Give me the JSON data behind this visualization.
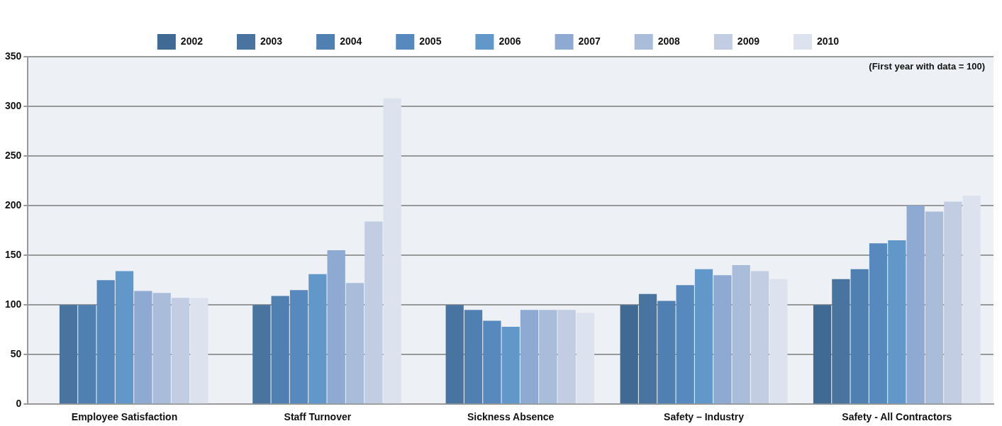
{
  "chart_data": {
    "type": "bar",
    "categories": [
      "Employee Satisfaction",
      "Staff Turnover",
      "Sickness Absence",
      "Safety – Industry",
      "Safety - All Contractors"
    ],
    "series": [
      {
        "name": "2002",
        "color": "#3f6a94",
        "values": [
          null,
          null,
          null,
          100,
          100
        ]
      },
      {
        "name": "2003",
        "color": "#48749f",
        "values": [
          100,
          100,
          100,
          111,
          126
        ]
      },
      {
        "name": "2004",
        "color": "#5080b2",
        "values": [
          100,
          109,
          95,
          104,
          136
        ]
      },
      {
        "name": "2005",
        "color": "#5789bf",
        "values": [
          125,
          115,
          84,
          120,
          162
        ]
      },
      {
        "name": "2006",
        "color": "#6197c9",
        "values": [
          134,
          131,
          78,
          136,
          165
        ]
      },
      {
        "name": "2007",
        "color": "#8eaad3",
        "values": [
          114,
          155,
          95,
          130,
          200
        ]
      },
      {
        "name": "2008",
        "color": "#a9bddb",
        "values": [
          112,
          122,
          95,
          140,
          194
        ]
      },
      {
        "name": "2009",
        "color": "#c2cde3",
        "values": [
          107,
          184,
          95,
          134,
          204
        ]
      },
      {
        "name": "2010",
        "color": "#dce3ee",
        "values": [
          107,
          308,
          92,
          126,
          210
        ]
      }
    ],
    "ylim": [
      0,
      350
    ],
    "yticks": [
      0,
      50,
      100,
      150,
      200,
      250,
      300,
      350
    ],
    "grid": "y",
    "legend": "top",
    "annotations": [
      "(First year with data = 100)"
    ]
  }
}
